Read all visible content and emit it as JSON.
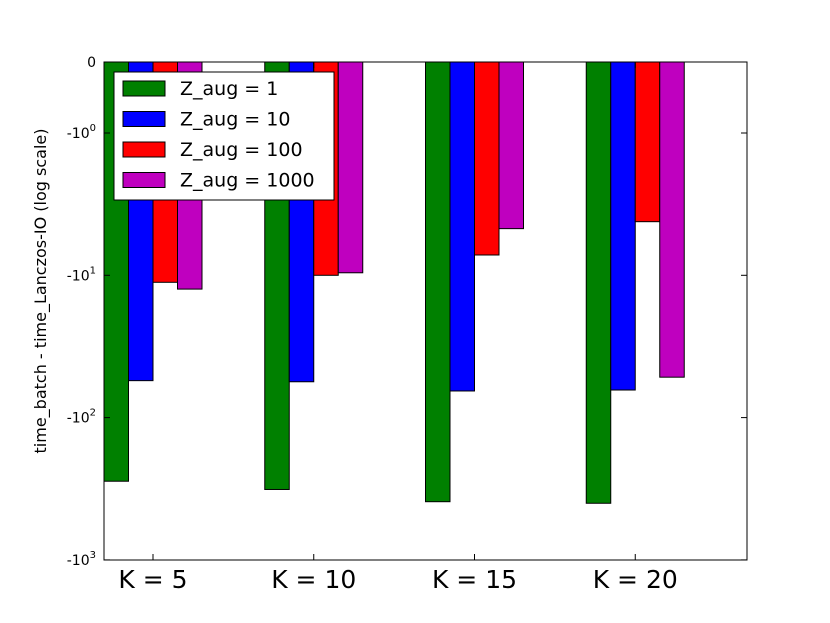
{
  "chart_data": {
    "type": "bar",
    "title": "",
    "xlabel": "",
    "ylabel": "time_batch - time_Lanczos-IO (log scale)",
    "yscale": "symlog",
    "ylim": [
      0,
      -1000
    ],
    "yticks": [
      {
        "value": 0,
        "base": "0",
        "exp": ""
      },
      {
        "value": -1,
        "base": "-10",
        "exp": "0"
      },
      {
        "value": -10,
        "base": "-10",
        "exp": "1"
      },
      {
        "value": -100,
        "base": "-10",
        "exp": "2"
      },
      {
        "value": -1000,
        "base": "-10",
        "exp": "3"
      }
    ],
    "categories": [
      "K = 5",
      "K = 10",
      "K = 15",
      "K = 20"
    ],
    "series": [
      {
        "name": "Z_aug = 1",
        "color": "#008000",
        "values": [
          -280,
          -320,
          -390,
          -400
        ]
      },
      {
        "name": "Z_aug = 10",
        "color": "#0000ff",
        "values": [
          -55,
          -56,
          -65,
          -64
        ]
      },
      {
        "name": "Z_aug = 100",
        "color": "#ff0000",
        "values": [
          -11.2,
          -10,
          -7.2,
          -4.2
        ]
      },
      {
        "name": "Z_aug = 1000",
        "color": "#bf00bf",
        "values": [
          -12.5,
          -9.6,
          -4.7,
          -52
        ]
      }
    ],
    "legend_position": "top-left",
    "grid": false
  }
}
